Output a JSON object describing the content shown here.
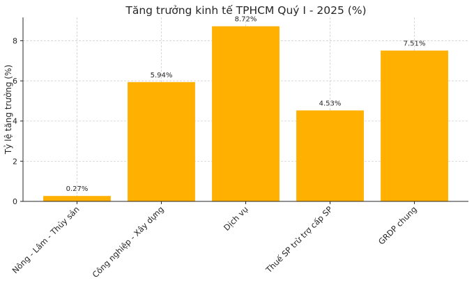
{
  "chart_data": {
    "type": "bar",
    "title": "Tăng trưởng kinh tế TPHCM Quý I - 2025 (%)",
    "xlabel": "",
    "ylabel": "Tỷ lệ tăng trưởng (%)",
    "categories": [
      "Nông - Lâm - Thủy sản",
      "Công nghiệp - Xây dựng",
      "Dịch vụ",
      "Thuế SP trừ trợ cấp SP",
      "GRDP chung"
    ],
    "values": [
      0.27,
      5.94,
      8.72,
      4.53,
      7.51
    ],
    "data_labels": [
      "0.27%",
      "5.94%",
      "8.72%",
      "4.53%",
      "7.51%"
    ],
    "ylim": [
      0,
      9.16
    ],
    "yticks": [
      0,
      2,
      4,
      6,
      8
    ],
    "grid": true,
    "bar_color": "#ffb000"
  }
}
